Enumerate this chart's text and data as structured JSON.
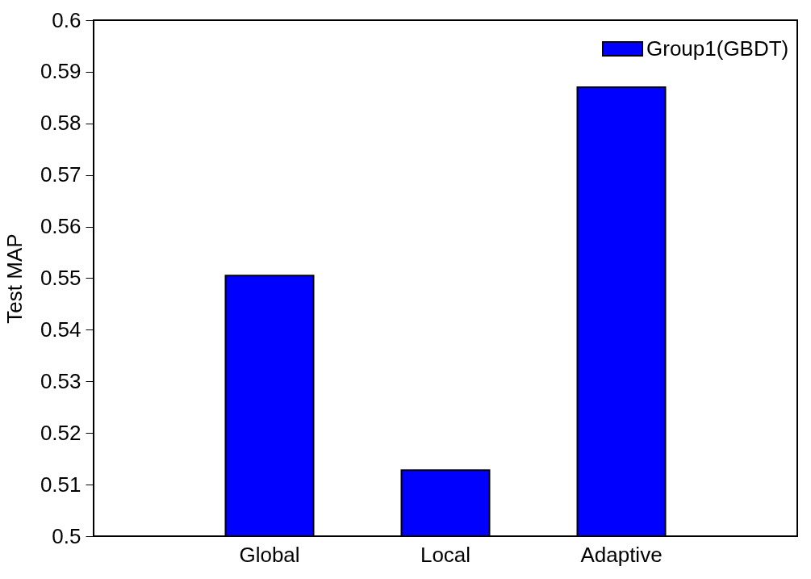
{
  "chart_data": {
    "type": "bar",
    "ylabel": "Test MAP",
    "categories": [
      "Global",
      "Local",
      "Adaptive"
    ],
    "series": [
      {
        "name": "Group1(GBDT)",
        "color": "#0000ff",
        "values": [
          0.5505,
          0.5128,
          0.587
        ]
      }
    ],
    "ylim": [
      0.5,
      0.6
    ],
    "yticks": [
      0.5,
      0.51,
      0.52,
      0.53,
      0.54,
      0.55,
      0.56,
      0.57,
      0.58,
      0.59,
      0.6
    ],
    "grid": false,
    "legend": "top right"
  }
}
